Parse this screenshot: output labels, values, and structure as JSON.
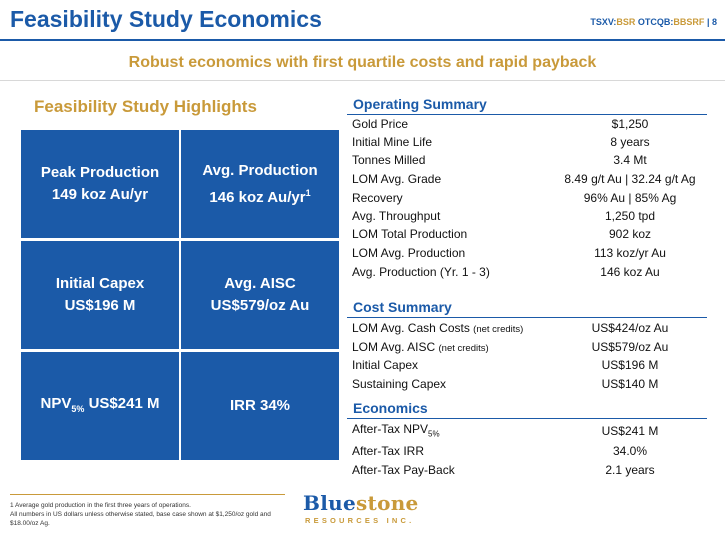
{
  "header": {
    "title": "Feasibility Study Economics",
    "ticker_tsxv": "TSXV:",
    "ticker_bsr": "BSR",
    "ticker_otcqb": "OTCQB:",
    "ticker_bbsrf": "BBSRF",
    "separator": "|",
    "page_number": "8"
  },
  "subtitle": "Robust economics with first quartile costs and rapid payback",
  "highlights": {
    "title": "Feasibility Study Highlights",
    "tiles": [
      {
        "line1": "Peak Production",
        "line2": "149 koz Au/yr"
      },
      {
        "line1": "Avg. Production",
        "line2": "146 koz Au/yr",
        "sup": "1"
      },
      {
        "line1": "Initial Capex",
        "line2": "US$196 M"
      },
      {
        "line1": "Avg. AISC",
        "line2": "US$579/oz Au"
      },
      {
        "pre": "NPV",
        "sub": "5%",
        "post": " US$241 M"
      },
      {
        "line1": "IRR 34%"
      }
    ]
  },
  "operating_summary": {
    "title": "Operating Summary",
    "rows": [
      {
        "label": "Gold Price",
        "value": "$1,250"
      },
      {
        "label": "Initial Mine Life",
        "value": "8 years"
      },
      {
        "label": "Tonnes Milled",
        "value": "3.4 Mt"
      },
      {
        "label": "LOM Avg. Grade",
        "value": "8.49 g/t Au |  32.24 g/t Ag"
      },
      {
        "label": "Recovery",
        "value": "96% Au | 85% Ag"
      },
      {
        "label": "Avg. Throughput",
        "value": "1,250 tpd"
      },
      {
        "label": "LOM Total Production",
        "value": "902 koz"
      },
      {
        "label": "LOM Avg. Production",
        "value": "113 koz/yr Au"
      },
      {
        "label": "Avg. Production (Yr. 1 - 3)",
        "value": "146 koz Au"
      }
    ]
  },
  "cost_summary": {
    "title": "Cost Summary",
    "rows": [
      {
        "label": "LOM Avg. Cash Costs",
        "note": "(net credits)",
        "value": "US$424/oz Au"
      },
      {
        "label": "LOM Avg. AISC",
        "note": "(net credits)",
        "value": "US$579/oz Au"
      },
      {
        "label": "Initial Capex",
        "value": "US$196 M"
      },
      {
        "label": "Sustaining Capex",
        "value": "US$140 M"
      }
    ]
  },
  "economics": {
    "title": "Economics",
    "rows": [
      {
        "label": "After-Tax NPV",
        "sub": "5%",
        "value": "US$241 M"
      },
      {
        "label": "After-Tax IRR",
        "value": "34.0%"
      },
      {
        "label": "After-Tax Pay-Back",
        "value": "2.1 years"
      }
    ]
  },
  "footnotes": {
    "line1": "1 Average gold production in the first three years of operations.",
    "line2": "All numbers in US dollars unless otherwise stated, base case shown at $1,250/oz gold and $18.00/oz Ag."
  },
  "logo": {
    "word_blue": "Blue",
    "word_gold": "stone",
    "tagline": "RESOURCES INC."
  },
  "colors": {
    "brand_blue": "#1b5aa8",
    "brand_gold": "#c99a3a"
  }
}
